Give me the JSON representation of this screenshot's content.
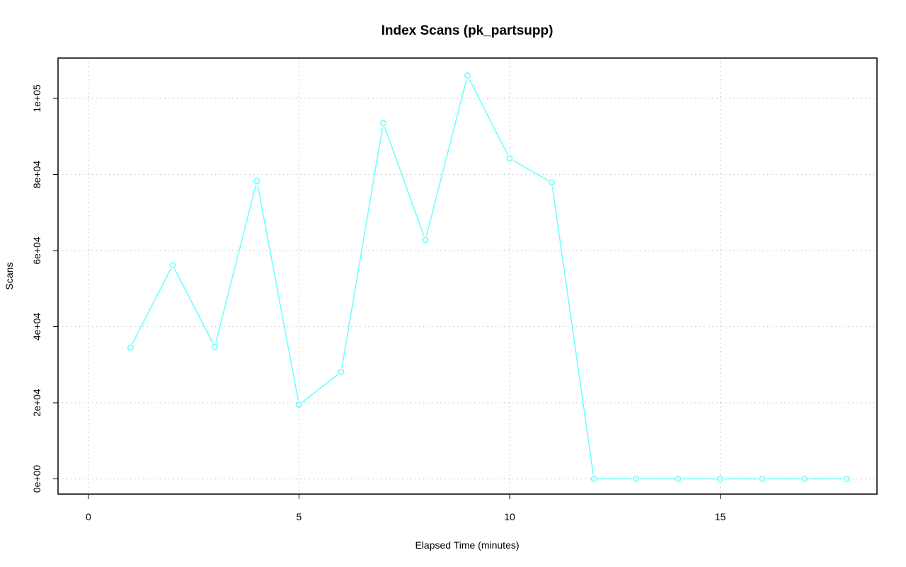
{
  "chart_data": {
    "type": "line",
    "title": "Index Scans (pk_partsupp)",
    "xlabel": "Elapsed Time (minutes)",
    "ylabel": "Scans",
    "xlim": [
      -0.72,
      18.72
    ],
    "ylim": [
      -4000,
      110600
    ],
    "x_ticks": [
      0,
      5,
      10,
      15
    ],
    "x_tick_labels": [
      "0",
      "5",
      "10",
      "15"
    ],
    "y_ticks": [
      0,
      20000,
      40000,
      60000,
      80000,
      100000
    ],
    "y_tick_labels": [
      "0e+00",
      "2e+04",
      "4e+04",
      "6e+04",
      "8e+04",
      "1e+05"
    ],
    "grid": true,
    "legend": "none",
    "series": [
      {
        "x": [
          1,
          2,
          3,
          4,
          5,
          6,
          7,
          8,
          9,
          10,
          11,
          12,
          13,
          14,
          15,
          16,
          17,
          18
        ],
        "values": [
          34500,
          56200,
          34700,
          78300,
          19500,
          28100,
          93500,
          62800,
          106000,
          84200,
          77900,
          0,
          0,
          0,
          0,
          0,
          0,
          0
        ],
        "color": "#66ffff"
      }
    ]
  }
}
